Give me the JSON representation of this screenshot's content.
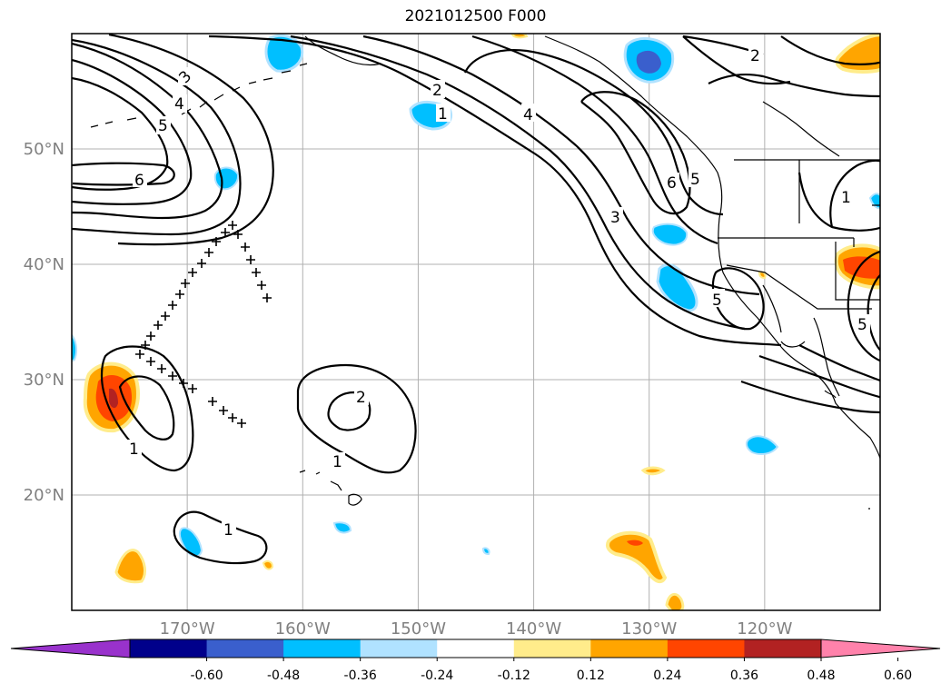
{
  "title": "2021012500 F000",
  "map": {
    "lat_labels": [
      "50°N",
      "40°N",
      "30°N",
      "20°N"
    ],
    "lon_labels": [
      "170°W",
      "160°W",
      "150°W",
      "140°W",
      "130°W",
      "120°W"
    ],
    "lat_values": [
      50,
      40,
      30,
      20
    ],
    "lon_values": [
      -170,
      -160,
      -150,
      -140,
      -130,
      -120
    ],
    "extent": {
      "lon_min": -180,
      "lon_max": -110,
      "lat_min": 10,
      "lat_max": 60
    },
    "contour_labels": [
      "1",
      "2",
      "3",
      "4",
      "5",
      "6"
    ],
    "contour_color": "#000000",
    "grid": true
  },
  "colorbar": {
    "ticks": [
      "-0.60",
      "-0.48",
      "-0.36",
      "-0.24",
      "-0.12",
      "0.12",
      "0.24",
      "0.36",
      "0.48",
      "0.60"
    ],
    "colors": [
      "#9932cc",
      "#00008b",
      "#3a5fcd",
      "#00bfff",
      "#b0e2ff",
      "#ffffff",
      "#ffec8b",
      "#ffa500",
      "#ff4500",
      "#b22222",
      "#ff82ab"
    ]
  }
}
